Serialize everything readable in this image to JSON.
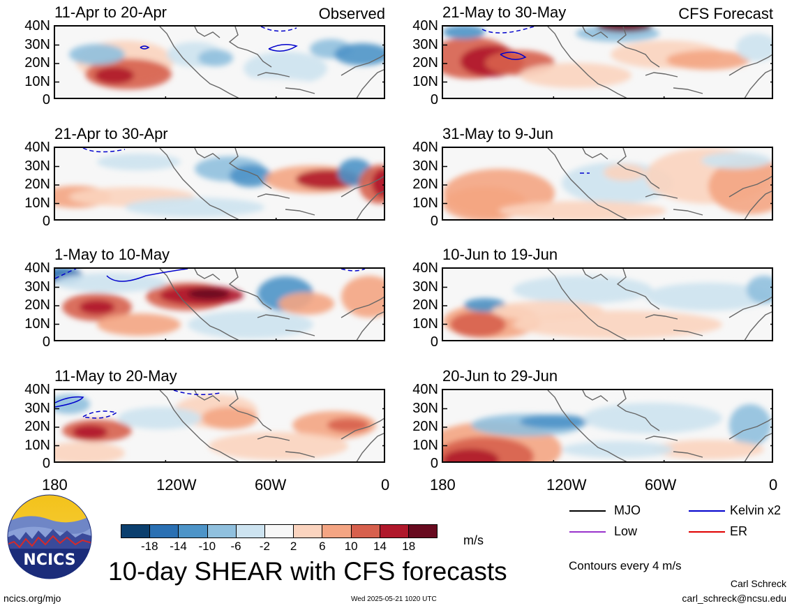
{
  "panels": [
    {
      "title": "11-Apr to 20-Apr",
      "tag": "Observed"
    },
    {
      "title": "21-May to 30-May",
      "tag": "CFS Forecast"
    },
    {
      "title": "21-Apr to 30-Apr",
      "tag": ""
    },
    {
      "title": "31-May to 9-Jun",
      "tag": ""
    },
    {
      "title": "1-May to 10-May",
      "tag": ""
    },
    {
      "title": "10-Jun to 19-Jun",
      "tag": ""
    },
    {
      "title": "11-May to 20-May",
      "tag": ""
    },
    {
      "title": "20-Jun to 29-Jun",
      "tag": ""
    }
  ],
  "y_ticks": [
    "40N",
    "30N",
    "20N",
    "10N",
    "0"
  ],
  "x_ticks": [
    "180",
    "120W",
    "60W",
    "0"
  ],
  "colorbar": {
    "labels": [
      "-18",
      "-14",
      "-10",
      "-6",
      "-2",
      "2",
      "6",
      "10",
      "14",
      "18"
    ],
    "colors": [
      "#0b3f6e",
      "#2a70b3",
      "#4d94c8",
      "#90c0de",
      "#cde3f0",
      "#f7f7f7",
      "#fbd4bf",
      "#f4a583",
      "#d7604d",
      "#b0182b",
      "#680a1f"
    ],
    "units": "m/s"
  },
  "title": "10-day SHEAR with CFS forecasts",
  "legend": {
    "items": [
      {
        "label": "MJO",
        "color": "#000000"
      },
      {
        "label": "Kelvin x2",
        "color": "#0000cc"
      },
      {
        "label": "Low",
        "color": "#9933cc"
      },
      {
        "label": "ER",
        "color": "#e00000"
      }
    ],
    "contour_note": "Contours every 4 m/s"
  },
  "logo_text": "NCICS",
  "footer": {
    "url": "ncics.org/mjo",
    "timestamp": "Wed 2025-05-21 1020 UTC",
    "author": "Carl Schreck",
    "email": "carl_schreck@ncsu.edu"
  }
}
